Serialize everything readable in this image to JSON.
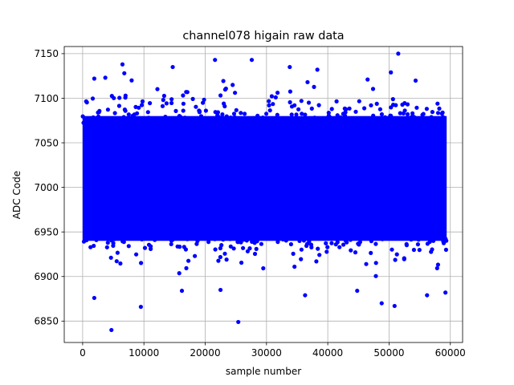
{
  "chart_data": {
    "type": "scatter",
    "title": "channel078 higain raw data",
    "xlabel": "sample number",
    "ylabel": "ADC Code",
    "xlim": [
      -3000,
      62000
    ],
    "ylim": [
      6826,
      7158
    ],
    "xticks": [
      0,
      10000,
      20000,
      30000,
      40000,
      50000,
      60000
    ],
    "yticks": [
      6850,
      6900,
      6950,
      7000,
      7050,
      7100,
      7150
    ],
    "grid": true,
    "marker_color": "#0000ff",
    "series": [
      {
        "x_range": [
          0,
          59400
        ],
        "n_points": 59400,
        "dense_band": [
          6940,
          7080
        ],
        "center": 7010,
        "outliers": [
          {
            "x": 4700,
            "y": 6840
          },
          {
            "x": 25400,
            "y": 6849
          },
          {
            "x": 9500,
            "y": 6866
          },
          {
            "x": 1900,
            "y": 6876
          },
          {
            "x": 36300,
            "y": 6879
          },
          {
            "x": 50900,
            "y": 6867
          },
          {
            "x": 48800,
            "y": 6870
          },
          {
            "x": 56200,
            "y": 6879
          },
          {
            "x": 59200,
            "y": 6882
          },
          {
            "x": 44800,
            "y": 6884
          },
          {
            "x": 22500,
            "y": 6885
          },
          {
            "x": 16200,
            "y": 6884
          },
          {
            "x": 51500,
            "y": 7150
          },
          {
            "x": 21600,
            "y": 7143
          },
          {
            "x": 27600,
            "y": 7143
          },
          {
            "x": 6500,
            "y": 7138
          },
          {
            "x": 33800,
            "y": 7135
          },
          {
            "x": 14700,
            "y": 7135
          },
          {
            "x": 38300,
            "y": 7132
          },
          {
            "x": 50300,
            "y": 7129
          },
          {
            "x": 6800,
            "y": 7128
          },
          {
            "x": 1900,
            "y": 7122
          },
          {
            "x": 3700,
            "y": 7123
          },
          {
            "x": 8000,
            "y": 7120
          },
          {
            "x": 46500,
            "y": 7121
          },
          {
            "x": 36700,
            "y": 7118
          }
        ]
      }
    ]
  }
}
